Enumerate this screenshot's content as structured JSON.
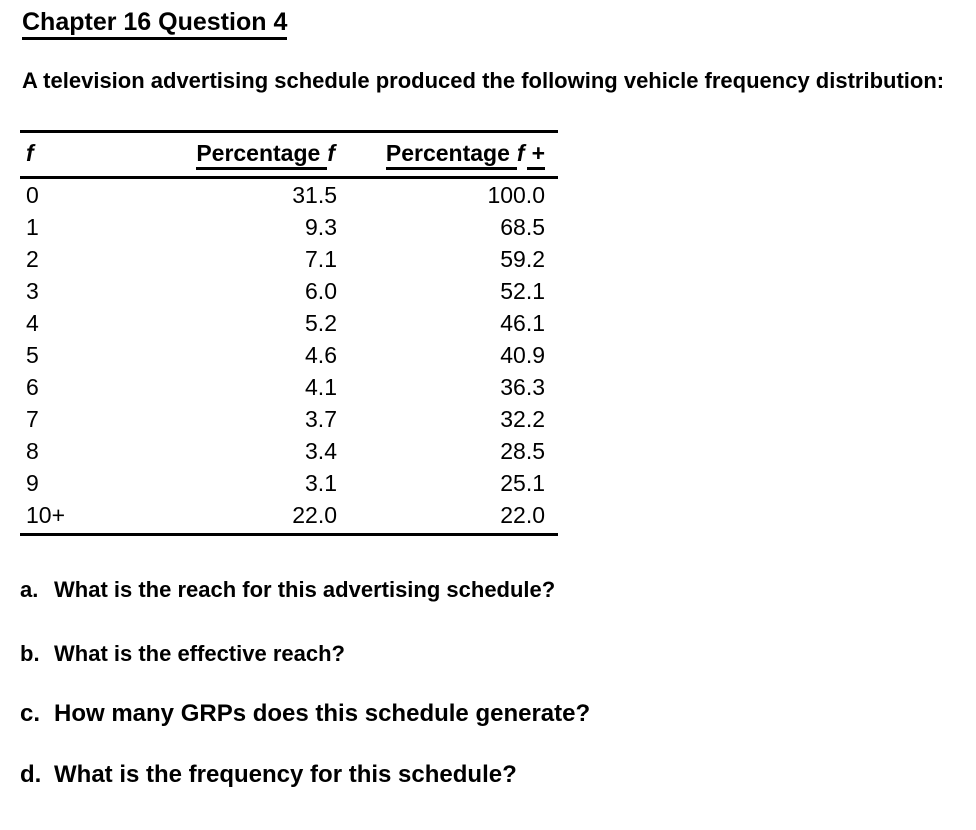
{
  "page": {
    "title": "Chapter 16 Question 4",
    "intro": "A television advertising schedule produced the following vehicle frequency distribution:"
  },
  "table": {
    "columns": [
      "f",
      "Percentage f",
      "Percentage f+"
    ],
    "header_parts": {
      "f": "f",
      "percentage": "Percentage",
      "plus": "+"
    },
    "rows": [
      {
        "f": "0",
        "pct_f": "31.5",
        "pct_f_plus": "100.0"
      },
      {
        "f": "1",
        "pct_f": "9.3",
        "pct_f_plus": "68.5"
      },
      {
        "f": "2",
        "pct_f": "7.1",
        "pct_f_plus": "59.2"
      },
      {
        "f": "3",
        "pct_f": "6.0",
        "pct_f_plus": "52.1"
      },
      {
        "f": "4",
        "pct_f": "5.2",
        "pct_f_plus": "46.1"
      },
      {
        "f": "5",
        "pct_f": "4.6",
        "pct_f_plus": "40.9"
      },
      {
        "f": "6",
        "pct_f": "4.1",
        "pct_f_plus": "36.3"
      },
      {
        "f": "7",
        "pct_f": "3.7",
        "pct_f_plus": "32.2"
      },
      {
        "f": "8",
        "pct_f": "3.4",
        "pct_f_plus": "28.5"
      },
      {
        "f": "9",
        "pct_f": "3.1",
        "pct_f_plus": "25.1"
      },
      {
        "f": "10+",
        "pct_f": "22.0",
        "pct_f_plus": "22.0"
      }
    ]
  },
  "questions": [
    {
      "label": "a.",
      "text": "What is the reach for this advertising schedule?"
    },
    {
      "label": "b.",
      "text": "What is the effective reach?"
    },
    {
      "label": "c.",
      "text": "How many GRPs does this schedule generate?"
    },
    {
      "label": "d.",
      "text": "What is the frequency for this schedule?"
    }
  ],
  "colors": {
    "text": "#000000",
    "background": "#ffffff"
  }
}
